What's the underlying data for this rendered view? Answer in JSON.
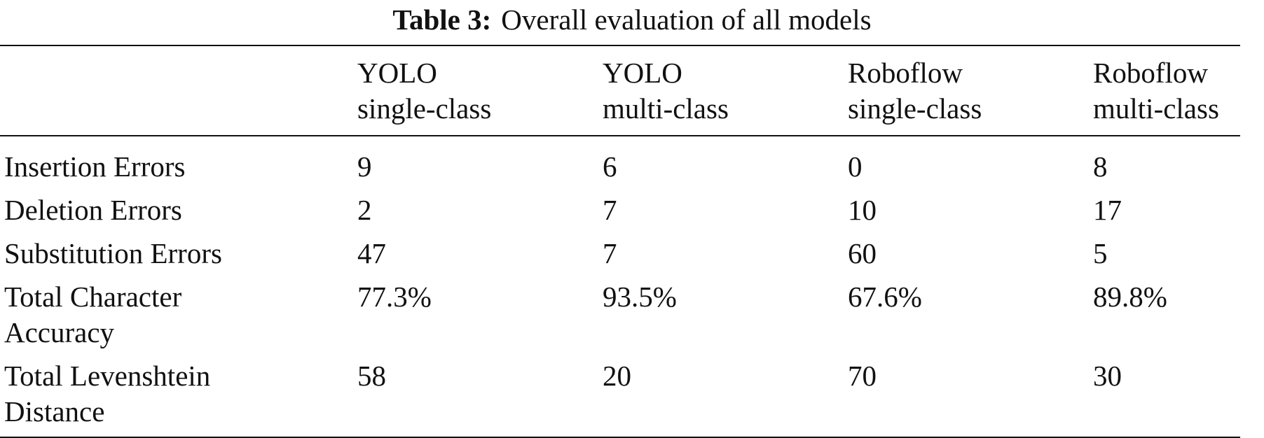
{
  "caption": {
    "label": "Table 3:",
    "text": "Overall evaluation of all models"
  },
  "table": {
    "columns": [
      {
        "line1": "YOLO",
        "line2": "single-class"
      },
      {
        "line1": "YOLO",
        "line2": "multi-class"
      },
      {
        "line1": "Roboflow",
        "line2": "single-class"
      },
      {
        "line1": "Roboflow",
        "line2": "multi-class"
      }
    ],
    "rows": [
      {
        "label": "Insertion Errors",
        "values": [
          "9",
          "6",
          "0",
          "8"
        ]
      },
      {
        "label": "Deletion Errors",
        "values": [
          "2",
          "7",
          "10",
          "17"
        ]
      },
      {
        "label": "Substitution Errors",
        "values": [
          "47",
          "7",
          "60",
          "5"
        ]
      },
      {
        "label_line1": "Total Character",
        "label_line2": "Accuracy",
        "values": [
          "77.3%",
          "93.5%",
          "67.6%",
          "89.8%"
        ]
      },
      {
        "label_line1": "Total Levenshtein",
        "label_line2": "Distance",
        "values": [
          "58",
          "20",
          "70",
          "30"
        ]
      }
    ]
  }
}
